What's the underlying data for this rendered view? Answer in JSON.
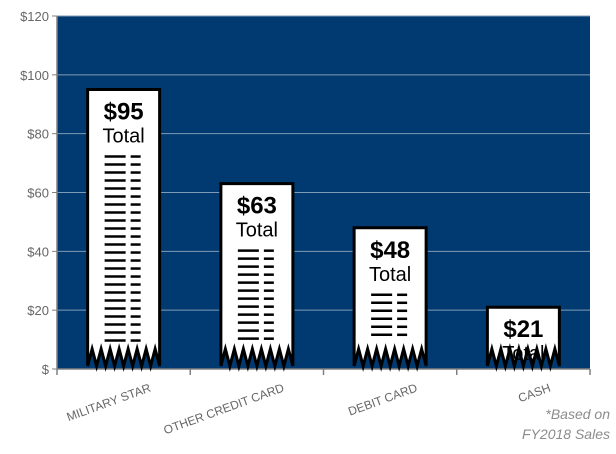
{
  "chart_data": {
    "type": "bar",
    "categories": [
      "MILITARY STAR",
      "OTHER CREDIT CARD",
      "DEBIT CARD",
      "CASH"
    ],
    "values": [
      95,
      63,
      48,
      21
    ],
    "bar_labels": [
      "$95",
      "$63",
      "$48",
      "$21"
    ],
    "bar_sublabel": "Total",
    "title": "",
    "xlabel": "",
    "ylabel": "",
    "ylim": [
      0,
      120
    ],
    "yticks": [
      0,
      20,
      40,
      60,
      80,
      100,
      120
    ],
    "ytick_labels": [
      "$",
      "$20",
      "$40",
      "$60",
      "$80",
      "$100",
      "$120"
    ],
    "grid": true,
    "bar_style": "receipt",
    "colors": {
      "plot_background": "#003a70",
      "bar_fill": "#ffffff",
      "bar_outline": "#000000",
      "gridline": "#7f9ab5",
      "axis": "#808080",
      "tick_label": "#666666"
    }
  },
  "footnote": {
    "line1": "*Based on",
    "line2": "FY2018 Sales"
  }
}
